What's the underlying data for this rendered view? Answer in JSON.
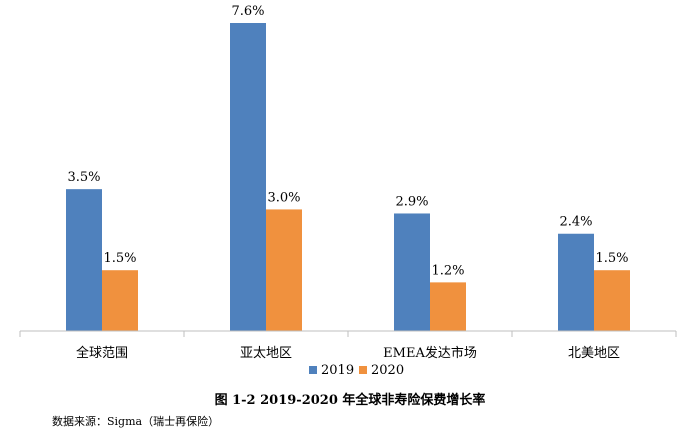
{
  "chart_data": {
    "type": "bar",
    "categories": [
      "全球范围",
      "亚太地区",
      "EMEA发达市场",
      "北美地区"
    ],
    "series": [
      {
        "name": "2019",
        "values": [
          3.5,
          7.6,
          2.9,
          2.4
        ],
        "labels": [
          "3.5%",
          "7.6%",
          "2.9%",
          "2.4%"
        ],
        "color": "#4f81bd"
      },
      {
        "name": "2020",
        "values": [
          1.5,
          3.0,
          1.2,
          1.5
        ],
        "labels": [
          "1.5%",
          "3.0%",
          "1.2%",
          "1.5%"
        ],
        "color": "#f0913e"
      }
    ],
    "ylim": [
      0,
      7.6
    ],
    "grid": false,
    "legend": "bottom-center"
  },
  "caption": "图 1-2 2019-2020 年全球非寿险保费增长率",
  "source": "数据来源：Sigma（瑞士再保险）"
}
